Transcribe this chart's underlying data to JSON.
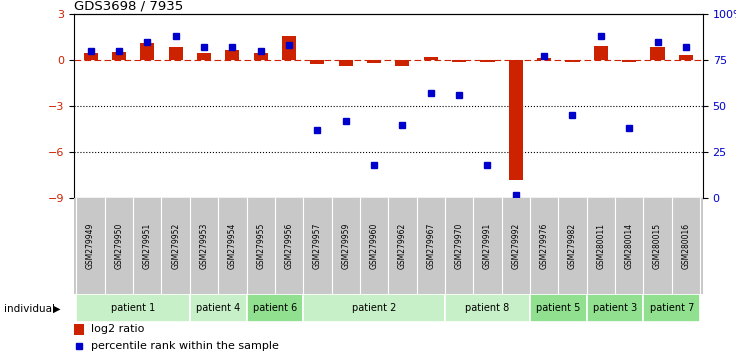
{
  "title": "GDS3698 / 7935",
  "samples": [
    "GSM279949",
    "GSM279950",
    "GSM279951",
    "GSM279952",
    "GSM279953",
    "GSM279954",
    "GSM279955",
    "GSM279956",
    "GSM279957",
    "GSM279959",
    "GSM279960",
    "GSM279962",
    "GSM279967",
    "GSM279970",
    "GSM279991",
    "GSM279992",
    "GSM279976",
    "GSM279982",
    "GSM280011",
    "GSM280014",
    "GSM280015",
    "GSM280016"
  ],
  "log2_ratio": [
    0.45,
    0.55,
    1.1,
    0.85,
    0.5,
    0.65,
    0.45,
    1.55,
    -0.25,
    -0.4,
    -0.2,
    -0.35,
    0.2,
    -0.1,
    -0.15,
    -7.8,
    0.15,
    -0.1,
    0.9,
    -0.1,
    0.85,
    0.35
  ],
  "percentile_rank": [
    80,
    80,
    85,
    88,
    82,
    82,
    80,
    83,
    37,
    42,
    18,
    40,
    57,
    56,
    18,
    2,
    77,
    45,
    88,
    38,
    85,
    82
  ],
  "patients": [
    {
      "label": "patient 1",
      "start": 0,
      "end": 4,
      "color": "#c8f0c8"
    },
    {
      "label": "patient 4",
      "start": 4,
      "end": 6,
      "color": "#c8f0c8"
    },
    {
      "label": "patient 6",
      "start": 6,
      "end": 8,
      "color": "#90e090"
    },
    {
      "label": "patient 2",
      "start": 8,
      "end": 13,
      "color": "#c8f0c8"
    },
    {
      "label": "patient 8",
      "start": 13,
      "end": 16,
      "color": "#c8f0c8"
    },
    {
      "label": "patient 5",
      "start": 16,
      "end": 18,
      "color": "#90e090"
    },
    {
      "label": "patient 3",
      "start": 18,
      "end": 20,
      "color": "#90e090"
    },
    {
      "label": "patient 7",
      "start": 20,
      "end": 22,
      "color": "#90e090"
    }
  ],
  "ylim_left": [
    -9,
    3
  ],
  "ylim_right": [
    0,
    100
  ],
  "yticks_left": [
    -9,
    -6,
    -3,
    0,
    3
  ],
  "yticks_right": [
    0,
    25,
    50,
    75,
    100
  ],
  "bar_color": "#cc2200",
  "marker_color": "#0000cc",
  "background_color": "#ffffff",
  "label_bg": "#c8c8c8",
  "label_fg": "#000000"
}
